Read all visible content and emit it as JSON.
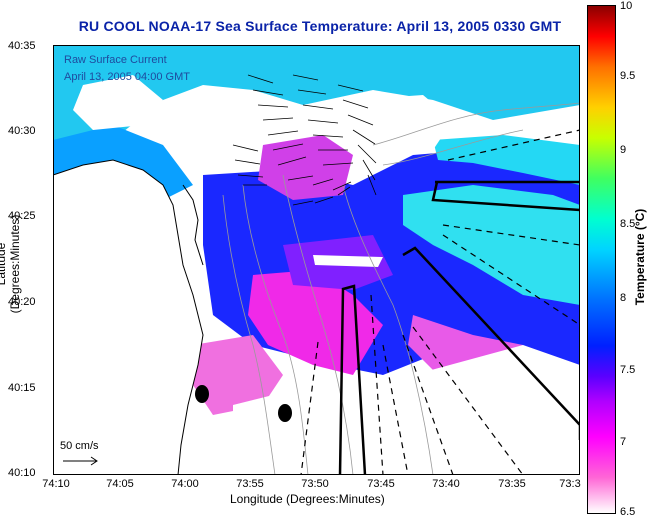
{
  "title": "RU COOL  NOAA-17  Sea Surface Temperature:  April 13, 2005 0330 GMT",
  "legend": {
    "line1": "Raw Surface Current",
    "line2": "April 13, 2005 04:00 GMT"
  },
  "scale_label": "50 cm/s",
  "axes": {
    "xlabel": "Longitude (Degrees:Minutes)",
    "ylabel": "Latitude (Degrees:Minutes)",
    "xticks": [
      "74:10",
      "74:05",
      "74:00",
      "73:55",
      "73:50",
      "73:45",
      "73:40",
      "73:35",
      "73:3"
    ],
    "yticks": [
      "40:35",
      "40:30",
      "40:25",
      "40:20",
      "40:15",
      "40:10"
    ]
  },
  "colorbar": {
    "title": "Temperature (°C)",
    "ticks": [
      "10",
      "9.5",
      "9",
      "8.5",
      "8",
      "7.5",
      "7",
      "6.5"
    ],
    "min": 6.5,
    "max": 10
  },
  "colors": {
    "title": "#0a23a8",
    "legend_text": "#1f4a9e",
    "warm_water": "#00d4ff",
    "cool_water": "#0020ff",
    "coldest_water": "#ff00ff"
  }
}
